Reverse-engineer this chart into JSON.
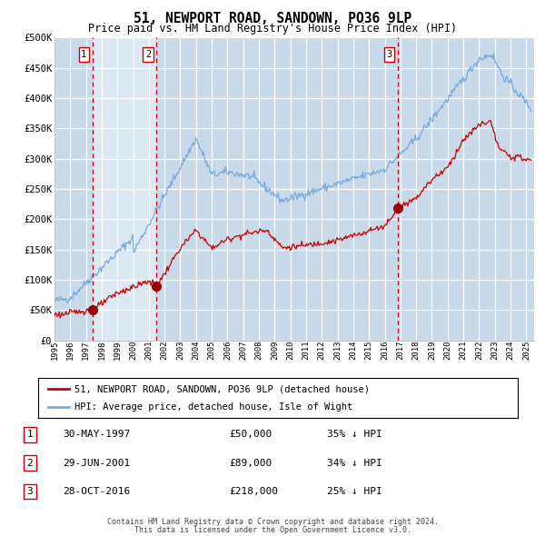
{
  "title": "51, NEWPORT ROAD, SANDOWN, PO36 9LP",
  "subtitle": "Price paid vs. HM Land Registry's House Price Index (HPI)",
  "legend_red": "51, NEWPORT ROAD, SANDOWN, PO36 9LP (detached house)",
  "legend_blue": "HPI: Average price, detached house, Isle of Wight",
  "footer1": "Contains HM Land Registry data © Crown copyright and database right 2024.",
  "footer2": "This data is licensed under the Open Government Licence v3.0.",
  "transactions": [
    {
      "num": 1,
      "date": "30-MAY-1997",
      "price": 50000,
      "pct": "35%",
      "dir": "↓"
    },
    {
      "num": 2,
      "date": "29-JUN-2001",
      "price": 89000,
      "pct": "34%",
      "dir": "↓"
    },
    {
      "num": 3,
      "date": "28-OCT-2016",
      "price": 218000,
      "pct": "25%",
      "dir": "↓"
    }
  ],
  "transaction_dates_decimal": [
    1997.413,
    2001.493,
    2016.826
  ],
  "transaction_prices": [
    50000,
    89000,
    218000
  ],
  "hpi_color": "#7aaadd",
  "price_color": "#cc0000",
  "dot_color": "#990000",
  "plot_bg": "#dce9f5",
  "grid_color": "#ffffff",
  "dashed_color": "#cc0000",
  "ylim": [
    0,
    500000
  ],
  "yticks": [
    0,
    50000,
    100000,
    150000,
    200000,
    250000,
    300000,
    350000,
    400000,
    450000,
    500000
  ],
  "xlim_start": 1995.0,
  "xlim_end": 2025.5,
  "shade_colors": [
    "#c8daea",
    "#dce9f5",
    "#c8daea",
    "#c8daea"
  ]
}
